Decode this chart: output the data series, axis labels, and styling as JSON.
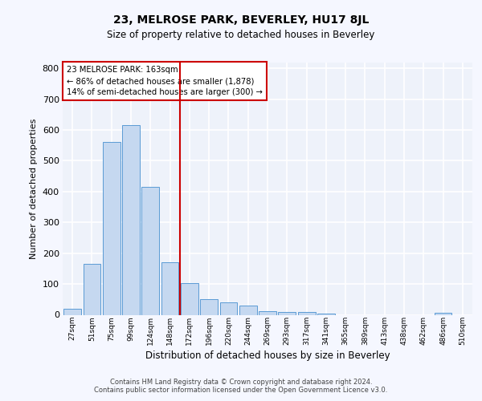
{
  "title": "23, MELROSE PARK, BEVERLEY, HU17 8JL",
  "subtitle": "Size of property relative to detached houses in Beverley",
  "xlabel": "Distribution of detached houses by size in Beverley",
  "ylabel": "Number of detached properties",
  "bar_color": "#c5d8f0",
  "bar_edge_color": "#5b9bd5",
  "categories": [
    "27sqm",
    "51sqm",
    "75sqm",
    "99sqm",
    "124sqm",
    "148sqm",
    "172sqm",
    "196sqm",
    "220sqm",
    "244sqm",
    "269sqm",
    "293sqm",
    "317sqm",
    "341sqm",
    "365sqm",
    "389sqm",
    "413sqm",
    "438sqm",
    "462sqm",
    "486sqm",
    "510sqm"
  ],
  "values": [
    20,
    165,
    560,
    615,
    415,
    170,
    103,
    52,
    40,
    30,
    13,
    10,
    8,
    5,
    0,
    0,
    0,
    0,
    0,
    7,
    0
  ],
  "vline_color": "#cc0000",
  "annotation_text": "23 MELROSE PARK: 163sqm\n← 86% of detached houses are smaller (1,878)\n14% of semi-detached houses are larger (300) →",
  "annotation_box_color": "white",
  "annotation_box_edge": "#cc0000",
  "ylim": [
    0,
    820
  ],
  "yticks": [
    0,
    100,
    200,
    300,
    400,
    500,
    600,
    700,
    800
  ],
  "footer1": "Contains HM Land Registry data © Crown copyright and database right 2024.",
  "footer2": "Contains public sector information licensed under the Open Government Licence v3.0.",
  "bg_color": "#eef2fa",
  "fig_bg_color": "#f5f7ff",
  "grid_color": "#ffffff"
}
